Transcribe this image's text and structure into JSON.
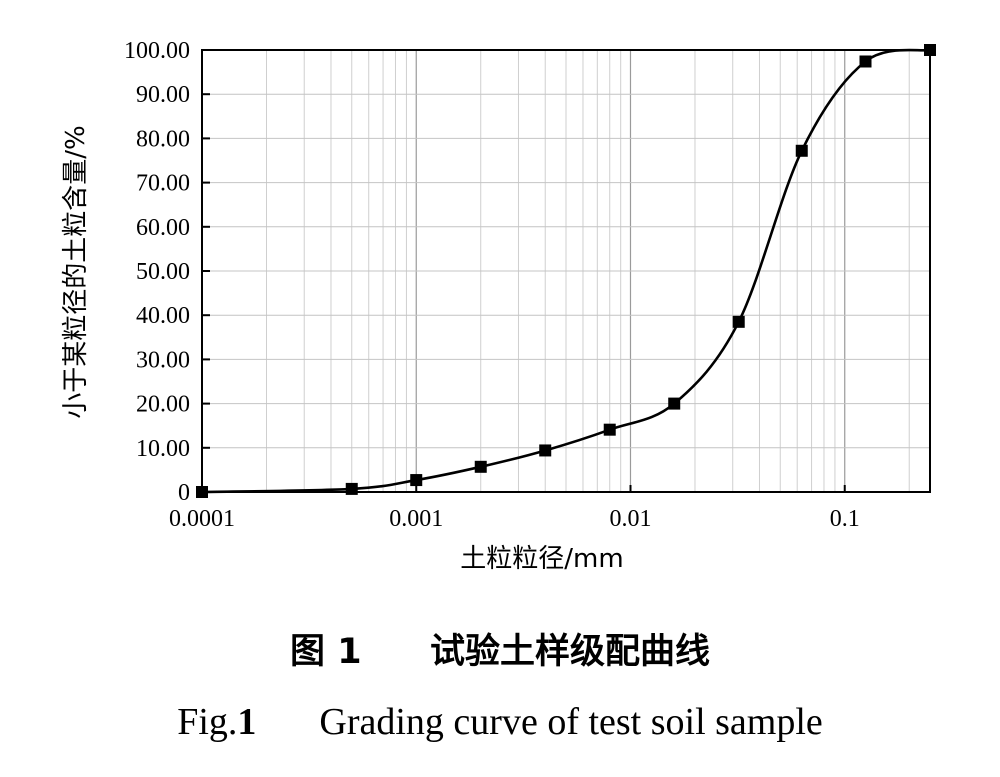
{
  "chart_data": {
    "type": "line",
    "xlabel": "土粒粒径/mm",
    "ylabel": "小于某粒径的土粒含量/%",
    "xscale": "log",
    "xlim": [
      0.0001,
      0.25
    ],
    "ylim": [
      0,
      100
    ],
    "xticks": [
      "0.0001",
      "0.001",
      "0.01",
      "0.1"
    ],
    "yticks": [
      "0",
      "10.00",
      "20.00",
      "30.00",
      "40.00",
      "50.00",
      "60.00",
      "70.00",
      "80.00",
      "90.00",
      "100.00"
    ],
    "grid": true,
    "markers": "filled-square",
    "series": [
      {
        "x": [
          0.0001,
          0.0005,
          0.001,
          0.002,
          0.004,
          0.008,
          0.016,
          0.032,
          0.063,
          0.125,
          0.25
        ],
        "y": [
          0,
          0.7,
          2.7,
          5.7,
          9.4,
          14.1,
          20.0,
          38.5,
          77.2,
          97.4,
          100.0
        ]
      }
    ],
    "line_color": "#000000"
  },
  "caption": {
    "cn_prefix": "图",
    "cn_number": "1",
    "cn_title": "试验土样级配曲线",
    "en_prefix": "Fig.",
    "en_number": "1",
    "en_title": "Grading curve of test soil sample"
  }
}
